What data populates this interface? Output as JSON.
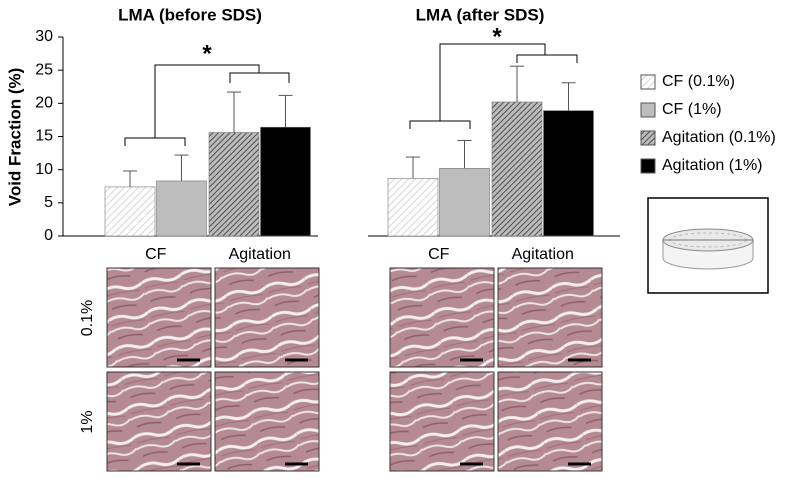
{
  "chart_data": [
    {
      "type": "bar",
      "title": "LMA (before SDS)",
      "y_label": "Void Fraction  (%)",
      "categories": [
        "CF",
        "Agitation"
      ],
      "series": [
        {
          "values": [
            7.4,
            null
          ],
          "errors": [
            2.4,
            null
          ]
        },
        {
          "values": [
            8.3,
            null
          ],
          "errors": [
            3.9,
            null
          ]
        },
        {
          "values": [
            null,
            15.6
          ],
          "errors": [
            null,
            6.1
          ]
        },
        {
          "values": [
            null,
            16.4
          ],
          "errors": [
            null,
            4.8
          ]
        }
      ],
      "ylim": [
        0,
        30
      ],
      "yticks": [
        0,
        5,
        10,
        15,
        20,
        25,
        30
      ],
      "annotation": "*"
    },
    {
      "type": "bar",
      "title": "LMA (after SDS)",
      "categories": [
        "CF",
        "Agitation"
      ],
      "series": [
        {
          "values": [
            8.7,
            null
          ],
          "errors": [
            3.2,
            null
          ]
        },
        {
          "values": [
            10.2,
            null
          ],
          "errors": [
            4.2,
            null
          ]
        },
        {
          "values": [
            null,
            20.2
          ],
          "errors": [
            null,
            5.4
          ]
        },
        {
          "values": [
            null,
            18.9
          ],
          "errors": [
            null,
            4.2
          ]
        }
      ],
      "ylim": [
        0,
        30
      ],
      "annotation": "*"
    }
  ],
  "legend": [
    {
      "name": "CF (0.1%)",
      "color": "#e8e8e8",
      "hatch": true
    },
    {
      "name": "CF (1%)",
      "color": "#bdbdbd",
      "hatch": false
    },
    {
      "name": "Agitation (0.1%)",
      "color": "#6e6e6e",
      "hatch": true
    },
    {
      "name": "Agitation (1%)",
      "color": "#000000",
      "hatch": false
    }
  ],
  "image_rows": [
    "0.1%",
    "1%"
  ]
}
